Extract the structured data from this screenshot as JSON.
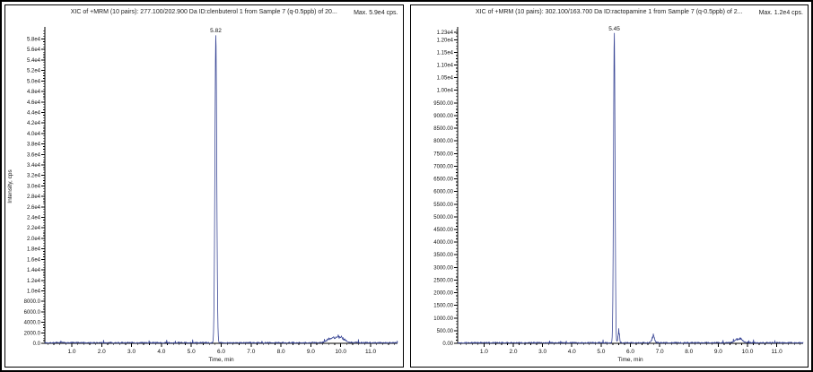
{
  "page": {
    "background": "#ffffff",
    "border_color": "#000000"
  },
  "chart_data": [
    {
      "type": "line",
      "title": "XIC of +MRM (10 pairs): 277.100/202.900 Da ID:clenbuterol 1 from Sample 7 (q-0.5ppb) of 20...",
      "max_annotation": "Max. 5.9e4 cps.",
      "xlabel": "Time, min",
      "ylabel": "Intensity, cps",
      "line_color": "#3A4796",
      "axis_color": "#000000",
      "grid": false,
      "legend": null,
      "xlim": [
        0.1,
        11.9
      ],
      "ylim": [
        0,
        59800
      ],
      "x_tick_values": [
        1,
        2,
        3,
        4,
        5,
        6,
        7,
        8,
        9,
        10,
        11
      ],
      "x_tick_labels": [
        "1.0",
        "2.0",
        "3.0",
        "4.0",
        "5.0",
        "6.0",
        "7.0",
        "8.0",
        "9.0",
        "10.0",
        "11.0"
      ],
      "y_tick_values": [
        0,
        2000,
        4000,
        6000,
        8000,
        10000,
        12000,
        14000,
        16000,
        18000,
        20000,
        22000,
        24000,
        26000,
        28000,
        30000,
        32000,
        34000,
        36000,
        38000,
        40000,
        42000,
        44000,
        46000,
        48000,
        50000,
        52000,
        54000,
        56000,
        58000
      ],
      "y_tick_labels": [
        "0.0",
        "2000.0",
        "4000.0",
        "6000.0",
        "8000.0",
        "1.0e4",
        "1.2e4",
        "1.4e4",
        "1.6e4",
        "1.8e4",
        "2.0e4",
        "2.2e4",
        "2.4e4",
        "2.6e4",
        "2.8e4",
        "3.0e4",
        "3.2e4",
        "3.4e4",
        "3.6e4",
        "3.8e4",
        "4.0e4",
        "4.2e4",
        "4.4e4",
        "4.6e4",
        "4.8e4",
        "5.0e4",
        "5.2e4",
        "5.4e4",
        "5.6e4",
        "5.8e4"
      ],
      "peaks": [
        {
          "time": 5.82,
          "intensity": 58800,
          "width_min": 0.07,
          "label": "5.82"
        }
      ],
      "minor_features": [
        {
          "time": 9.62,
          "intensity": 700,
          "width_min": 0.25
        },
        {
          "time": 9.92,
          "intensity": 1500,
          "width_min": 0.4
        }
      ],
      "baseline_noise_cps": 380
    },
    {
      "type": "line",
      "title": "XIC of +MRM (10 pairs): 302.100/163.700 Da ID:ractopamine 1 from Sample 7 (q-0.5ppb) of 2...",
      "max_annotation": "Max. 1.2e4 cps.",
      "xlabel": "Time, min",
      "ylabel": "",
      "line_color": "#3A4796",
      "axis_color": "#000000",
      "grid": false,
      "legend": null,
      "xlim": [
        0.1,
        11.9
      ],
      "ylim": [
        0,
        12400
      ],
      "x_tick_values": [
        1,
        2,
        3,
        4,
        5,
        6,
        7,
        8,
        9,
        10,
        11
      ],
      "x_tick_labels": [
        "1.0",
        "2.0",
        "3.0",
        "4.0",
        "5.0",
        "6.0",
        "7.0",
        "8.0",
        "9.0",
        "10.0",
        "11.0"
      ],
      "y_tick_values": [
        0,
        500,
        1000,
        1500,
        2000,
        2500,
        3000,
        3500,
        4000,
        4500,
        5000,
        5500,
        6000,
        6500,
        7000,
        7500,
        8000,
        8500,
        9000,
        9500,
        10000,
        10500,
        11000,
        11500,
        12000,
        12300
      ],
      "y_tick_labels": [
        "0.00",
        "500.00",
        "1000.00",
        "1500.00",
        "2000.00",
        "2500.00",
        "3000.00",
        "3500.00",
        "4000.00",
        "4500.00",
        "5000.00",
        "5500.00",
        "6000.00",
        "6500.00",
        "7000.00",
        "7500.00",
        "8000.00",
        "8500.00",
        "9000.00",
        "9500.00",
        "1.00e4",
        "1.05e4",
        "1.10e4",
        "1.15e4",
        "1.20e4",
        "1.23e4"
      ],
      "peaks": [
        {
          "time": 5.45,
          "intensity": 12250,
          "width_min": 0.06,
          "label": "5.45"
        }
      ],
      "minor_features": [
        {
          "time": 5.6,
          "intensity": 600,
          "width_min": 0.06
        },
        {
          "time": 6.78,
          "intensity": 380,
          "width_min": 0.1
        },
        {
          "time": 9.7,
          "intensity": 230,
          "width_min": 0.25
        }
      ],
      "baseline_noise_cps": 75
    }
  ]
}
